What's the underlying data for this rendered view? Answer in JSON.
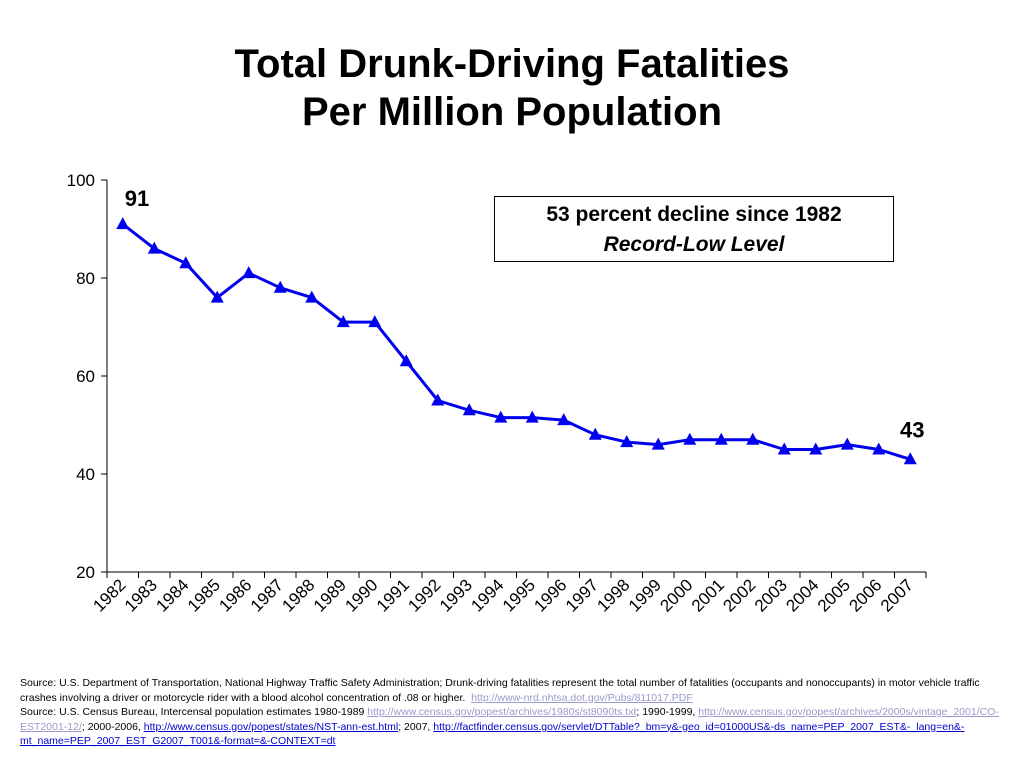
{
  "chart_data": {
    "type": "line",
    "title": "Total Drunk-Driving Fatalities",
    "subtitle": "Per Million Population",
    "xlabel": "",
    "ylabel": "",
    "ylim": [
      20,
      100
    ],
    "yticks": [
      "20",
      "40",
      "60",
      "80",
      "100"
    ],
    "grid": false,
    "categories": [
      "1982",
      "1983",
      "1984",
      "1985",
      "1986",
      "1987",
      "1988",
      "1989",
      "1990",
      "1991",
      "1992",
      "1993",
      "1994",
      "1995",
      "1996",
      "1997",
      "1998",
      "1999",
      "2000",
      "2001",
      "2002",
      "2003",
      "2004",
      "2005",
      "2006",
      "2007"
    ],
    "series": [
      {
        "values": [
          91,
          86,
          83,
          76,
          81,
          78,
          76,
          71,
          71,
          63,
          55,
          53,
          51.5,
          51.5,
          51,
          48,
          46.5,
          46,
          47,
          47,
          47,
          45,
          45,
          46,
          45,
          43
        ],
        "color": "#0000ee",
        "marker": "triangle"
      }
    ],
    "annotations": [
      {
        "text": "91",
        "category": "1982"
      },
      {
        "text": "43",
        "category": "2007"
      }
    ]
  },
  "callout": {
    "line1": "53 percent decline since 1982",
    "line2": "Record-Low Level"
  },
  "source": {
    "s1_text": "Source: U.S. Department of Transportation, National Highway Traffic Safety Administration; Drunk-driving fatalities represent the total number of fatalities (occupants and nonoccupants) in motor vehicle traffic crashes involving a driver or motorcycle rider with a blood alcohol concentration of .08 or higher.",
    "s1_link": "http://www-nrd.nhtsa.dot.gov/Pubs/811017.PDF",
    "s2_text": "Source: U.S. Census Bureau, Intercensal population estimates 1980-1989",
    "s2_link1": "http://www.census.gov/popest/archives/1980s/st8090ts.txt",
    "s2_sep1": "; 1990-1999,",
    "s2_link2": "http://www.census.gov/popest/archives/2000s/vintage_2001/CO-EST2001-12/",
    "s2_sep2": "; 2000-2006,",
    "s2_link3": "http://www.census.gov/popest/states/NST-ann-est.html",
    "s2_sep3": "; 2007,",
    "s2_link4": "http://factfinder.census.gov/servlet/DTTable?_bm=y&-geo_id=01000US&-ds_name=PEP_2007_EST&-_lang=en&-mt_name=PEP_2007_EST_G2007_T001&-format=&-CONTEXT=dt"
  }
}
